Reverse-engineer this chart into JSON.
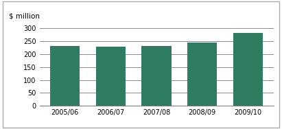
{
  "categories": [
    "2005/06",
    "2006/07",
    "2007/08",
    "2008/09",
    "2009/10"
  ],
  "values": [
    233,
    228,
    232,
    245,
    283
  ],
  "bar_color": "#2e7d60",
  "ylabel": "$ million",
  "ylim": [
    0,
    320
  ],
  "yticks": [
    0,
    50,
    100,
    150,
    200,
    250,
    300
  ],
  "background_color": "#ffffff",
  "bar_width": 0.65,
  "ylabel_fontsize": 7.5,
  "tick_fontsize": 7,
  "grid_color": "#777777",
  "border_color": "#aaaaaa",
  "figsize": [
    4.11,
    1.88
  ],
  "dpi": 100
}
